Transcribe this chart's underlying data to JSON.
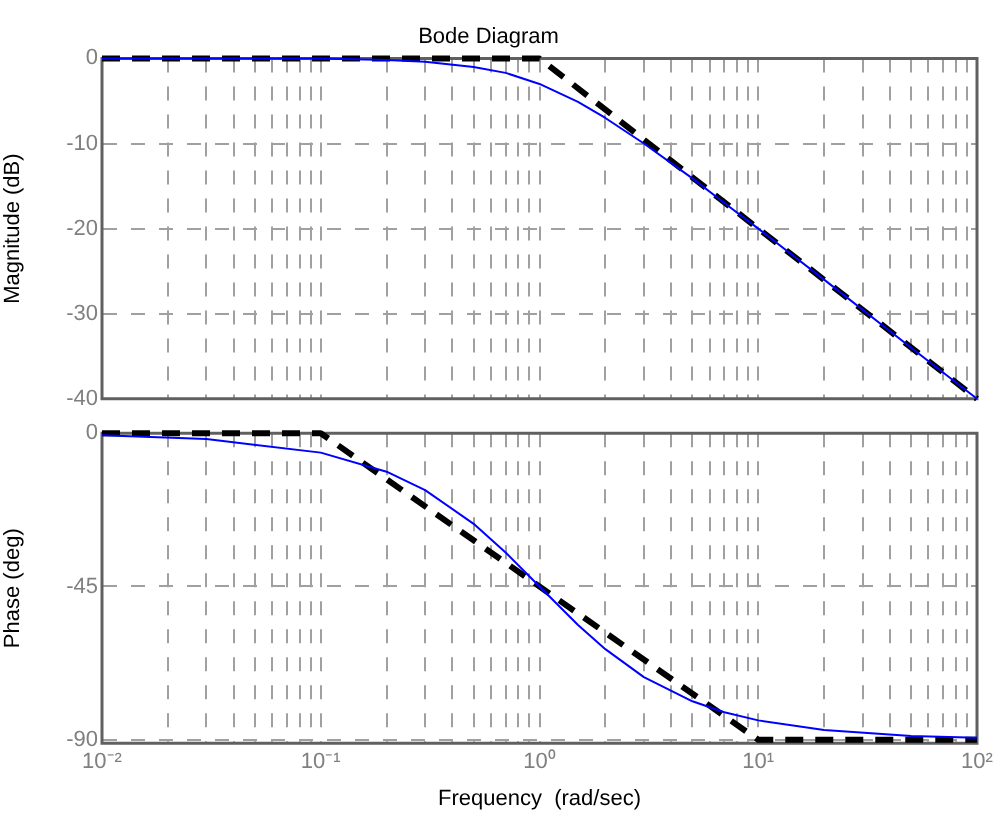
{
  "chart_data": [
    {
      "type": "line",
      "title": "Bode Diagram",
      "ylabel": "Magnitude (dB)",
      "log": "x",
      "grid": true,
      "tick_labels": "y",
      "xlim": [
        0.01,
        100
      ],
      "xticks": [
        {
          "value": 0.01,
          "label": null
        },
        {
          "value": 0.02,
          "label": null
        },
        {
          "value": 0.03,
          "label": null
        },
        {
          "value": 0.04,
          "label": null
        },
        {
          "value": 0.05,
          "label": null
        },
        {
          "value": 0.06,
          "label": null
        },
        {
          "value": 0.07,
          "label": null
        },
        {
          "value": 0.08,
          "label": null
        },
        {
          "value": 0.09,
          "label": null
        },
        {
          "value": 0.1,
          "label": null
        },
        {
          "value": 0.2,
          "label": null
        },
        {
          "value": 0.3,
          "label": null
        },
        {
          "value": 0.4,
          "label": null
        },
        {
          "value": 0.5,
          "label": null
        },
        {
          "value": 0.6,
          "label": null
        },
        {
          "value": 0.7,
          "label": null
        },
        {
          "value": 0.8,
          "label": null
        },
        {
          "value": 0.9,
          "label": null
        },
        {
          "value": 1,
          "label": null
        },
        {
          "value": 2,
          "label": null
        },
        {
          "value": 3,
          "label": null
        },
        {
          "value": 4,
          "label": null
        },
        {
          "value": 5,
          "label": null
        },
        {
          "value": 6,
          "label": null
        },
        {
          "value": 7,
          "label": null
        },
        {
          "value": 8,
          "label": null
        },
        {
          "value": 9,
          "label": null
        },
        {
          "value": 10,
          "label": null
        },
        {
          "value": 20,
          "label": null
        },
        {
          "value": 30,
          "label": null
        },
        {
          "value": 40,
          "label": null
        },
        {
          "value": 50,
          "label": null
        },
        {
          "value": 60,
          "label": null
        },
        {
          "value": 70,
          "label": null
        },
        {
          "value": 80,
          "label": null
        },
        {
          "value": 90,
          "label": null
        },
        {
          "value": 100,
          "label": null
        }
      ],
      "ylim": [
        -40,
        0
      ],
      "yticks": [
        -40,
        -30,
        -20,
        -10,
        0
      ],
      "series": [
        {
          "color": "#0000ff",
          "line_style": "solid",
          "x": [
            0.01,
            0.1,
            0.2,
            0.3,
            0.5,
            0.7,
            1,
            1.5,
            2,
            3,
            5,
            7,
            10,
            20,
            50,
            100
          ],
          "values": [
            0,
            0,
            -0.2,
            -0.4,
            -1,
            -1.7,
            -3,
            -5.1,
            -7,
            -10,
            -14.1,
            -17,
            -20,
            -26,
            -34,
            -40
          ]
        },
        {
          "color": "#000000",
          "line_style": "dashed",
          "x": [
            0.01,
            1,
            100
          ],
          "values": [
            0,
            0,
            -40
          ]
        }
      ]
    },
    {
      "type": "line",
      "xlabel": "Frequency  (rad/sec)",
      "ylabel": "Phase (deg)",
      "log": "x",
      "grid": true,
      "xlim": [
        0.01,
        100
      ],
      "xticks": [
        {
          "value": 0.01,
          "label": "10⁻²"
        },
        {
          "value": 0.02,
          "label": null
        },
        {
          "value": 0.03,
          "label": null
        },
        {
          "value": 0.04,
          "label": null
        },
        {
          "value": 0.05,
          "label": null
        },
        {
          "value": 0.06,
          "label": null
        },
        {
          "value": 0.07,
          "label": null
        },
        {
          "value": 0.08,
          "label": null
        },
        {
          "value": 0.09,
          "label": null
        },
        {
          "value": 0.1,
          "label": "10⁻¹"
        },
        {
          "value": 0.2,
          "label": null
        },
        {
          "value": 0.3,
          "label": null
        },
        {
          "value": 0.4,
          "label": null
        },
        {
          "value": 0.5,
          "label": null
        },
        {
          "value": 0.6,
          "label": null
        },
        {
          "value": 0.7,
          "label": null
        },
        {
          "value": 0.8,
          "label": null
        },
        {
          "value": 0.9,
          "label": null
        },
        {
          "value": 1,
          "label": "10⁰"
        },
        {
          "value": 2,
          "label": null
        },
        {
          "value": 3,
          "label": null
        },
        {
          "value": 4,
          "label": null
        },
        {
          "value": 5,
          "label": null
        },
        {
          "value": 6,
          "label": null
        },
        {
          "value": 7,
          "label": null
        },
        {
          "value": 8,
          "label": null
        },
        {
          "value": 9,
          "label": null
        },
        {
          "value": 10,
          "label": "10¹"
        },
        {
          "value": 20,
          "label": null
        },
        {
          "value": 30,
          "label": null
        },
        {
          "value": 40,
          "label": null
        },
        {
          "value": 50,
          "label": null
        },
        {
          "value": 60,
          "label": null
        },
        {
          "value": 70,
          "label": null
        },
        {
          "value": 80,
          "label": null
        },
        {
          "value": 90,
          "label": null
        },
        {
          "value": 100,
          "label": "10²"
        }
      ],
      "ylim": [
        -91,
        0
      ],
      "yticks": [
        -90,
        -45,
        0
      ],
      "series": [
        {
          "color": "#0000ff",
          "line_style": "solid",
          "x": [
            0.01,
            0.03,
            0.1,
            0.2,
            0.3,
            0.5,
            0.7,
            1,
            1.5,
            2,
            3,
            5,
            7,
            10,
            20,
            50,
            100
          ],
          "values": [
            -0.6,
            -1.7,
            -5.7,
            -11.3,
            -16.7,
            -26.6,
            -35,
            -45,
            -56.3,
            -63.4,
            -71.6,
            -78.7,
            -81.9,
            -84.3,
            -87.1,
            -88.9,
            -89.4
          ]
        },
        {
          "color": "#000000",
          "line_style": "dashed",
          "x": [
            0.01,
            0.1,
            10,
            100
          ],
          "values": [
            0,
            0,
            -90,
            -90
          ]
        }
      ]
    }
  ]
}
